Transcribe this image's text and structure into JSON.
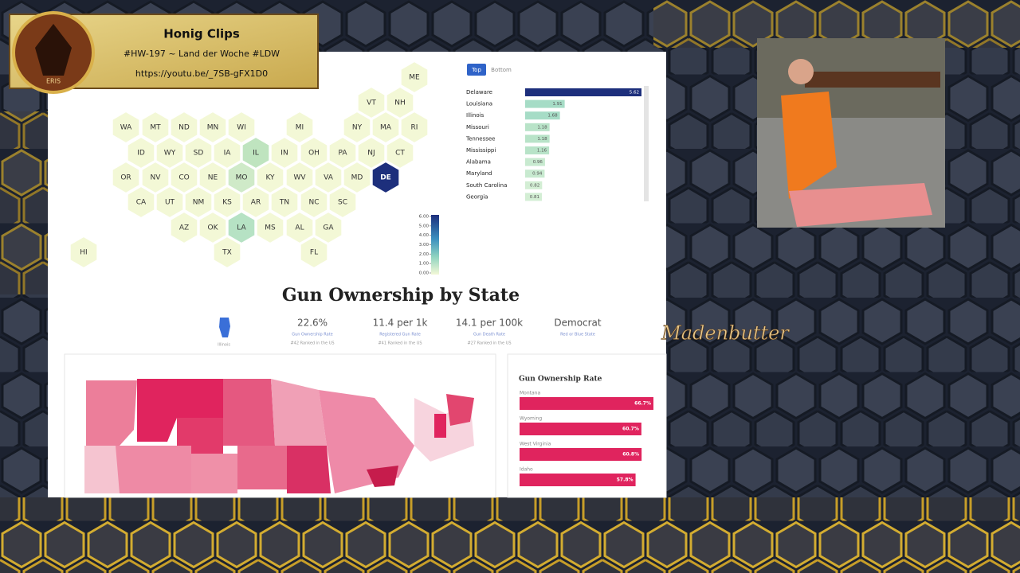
{
  "overlay": {
    "logo_text": "ERIS",
    "title": "Honig Clips",
    "subtitle": "#HW-197 ~ Land der Woche #LDW",
    "link": "https://youtu.be/_7SB-gFX1D0"
  },
  "hexmap": {
    "default_color": "#f3f8d6",
    "states": [
      {
        "label": "ME"
      },
      {
        "label": "VT"
      },
      {
        "label": "NH"
      },
      {
        "label": "WA"
      },
      {
        "label": "MT"
      },
      {
        "label": "ND"
      },
      {
        "label": "MN"
      },
      {
        "label": "WI"
      },
      {
        "label": "MI"
      },
      {
        "label": "NY"
      },
      {
        "label": "MA"
      },
      {
        "label": "RI"
      },
      {
        "label": "ID"
      },
      {
        "label": "WY"
      },
      {
        "label": "SD"
      },
      {
        "label": "IA"
      },
      {
        "label": "IL",
        "color": "#bfe4bf"
      },
      {
        "label": "IN"
      },
      {
        "label": "OH"
      },
      {
        "label": "PA"
      },
      {
        "label": "NJ"
      },
      {
        "label": "CT"
      },
      {
        "label": "OR"
      },
      {
        "label": "NV"
      },
      {
        "label": "CO"
      },
      {
        "label": "NE"
      },
      {
        "label": "MO",
        "color": "#cfeac8"
      },
      {
        "label": "KY"
      },
      {
        "label": "WV"
      },
      {
        "label": "VA"
      },
      {
        "label": "MD"
      },
      {
        "label": "DE",
        "color": "#1d2f7c"
      },
      {
        "label": "CA"
      },
      {
        "label": "UT"
      },
      {
        "label": "NM"
      },
      {
        "label": "KS"
      },
      {
        "label": "AR"
      },
      {
        "label": "TN"
      },
      {
        "label": "NC"
      },
      {
        "label": "SC"
      },
      {
        "label": "AZ"
      },
      {
        "label": "OK"
      },
      {
        "label": "LA",
        "color": "#b6e2c4"
      },
      {
        "label": "MS"
      },
      {
        "label": "AL"
      },
      {
        "label": "GA"
      },
      {
        "label": "HI"
      },
      {
        "label": "TX"
      },
      {
        "label": "FL"
      }
    ],
    "legend_ticks": [
      {
        "value": 6,
        "label": "6.00"
      },
      {
        "value": 5,
        "label": "5.00"
      },
      {
        "value": 4,
        "label": "4.00"
      },
      {
        "value": 3,
        "label": "3.00"
      },
      {
        "value": 2,
        "label": "2.00"
      },
      {
        "value": 1,
        "label": "1.00"
      },
      {
        "value": 0,
        "label": "0.00"
      }
    ]
  },
  "ranking": {
    "tabs": [
      "Top",
      "Bottom"
    ],
    "rows": [
      {
        "name": "Delaware",
        "value": 5.62,
        "color": "#1d2f7c"
      },
      {
        "name": "Louisiana",
        "value": 1.91,
        "color": "#a6dcc6"
      },
      {
        "name": "Illinois",
        "value": 1.68,
        "color": "#a6dcc6"
      },
      {
        "name": "Missouri",
        "value": 1.18,
        "color": "#b8e3c8"
      },
      {
        "name": "Tennessee",
        "value": 1.18,
        "color": "#b8e3c8"
      },
      {
        "name": "Mississippi",
        "value": 1.16,
        "color": "#b8e3c8"
      },
      {
        "name": "Alabama",
        "value": 0.96,
        "color": "#c8ead0"
      },
      {
        "name": "Maryland",
        "value": 0.94,
        "color": "#c8ead0"
      },
      {
        "name": "South Carolina",
        "value": 0.82,
        "color": "#d3eed4"
      },
      {
        "name": "Georgia",
        "value": 0.81,
        "color": "#d3eed4"
      }
    ]
  },
  "state_page": {
    "heading": "Gun Ownership by State",
    "state": "Illinois",
    "stats": [
      {
        "value": "22.6%",
        "label": "Gun Ownership Rate",
        "rank": "#42 Ranked in the US"
      },
      {
        "value": "11.4 per 1k",
        "label": "Registered Gun Rate",
        "rank": "#41 Ranked in the US"
      },
      {
        "value": "14.1 per 100k",
        "label": "Gun Death Rate",
        "rank": "#27 Ranked in the US"
      },
      {
        "value": "Democrat",
        "label": "Red or Blue State"
      }
    ],
    "rate_panel": {
      "title": "Gun Ownership Rate",
      "rows": [
        {
          "name": "Montana",
          "value": 66.7,
          "value_label": "66.7%"
        },
        {
          "name": "Wyoming",
          "value": 60.7,
          "value_label": "60.7%"
        },
        {
          "name": "West Virginia",
          "value": 60.8,
          "value_label": "60.8%"
        },
        {
          "name": "Idaho",
          "value": 57.8,
          "value_label": "57.8%"
        }
      ]
    }
  },
  "stream_logo": "Madenbutter"
}
